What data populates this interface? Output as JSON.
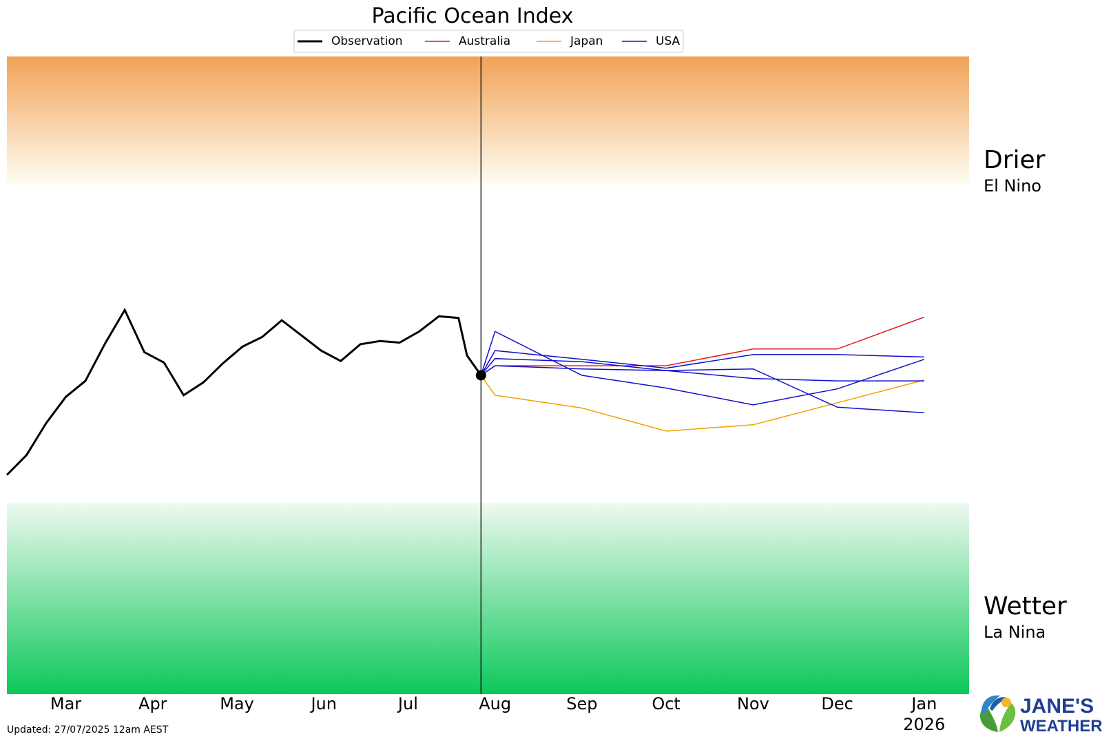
{
  "chart_data": {
    "type": "line",
    "title": "Pacific Ocean Index",
    "legend": {
      "placement": "top-center",
      "entries": [
        {
          "label": "Observation",
          "color": "#000000"
        },
        {
          "label": "Australia",
          "color": "#e41a1c"
        },
        {
          "label": "Japan",
          "color": "#f0a400"
        },
        {
          "label": "USA",
          "color": "#1010cc"
        }
      ]
    },
    "x_axis": {
      "tick_labels": [
        "Mar",
        "Apr",
        "May",
        "Jun",
        "Jul",
        "Aug",
        "Sep",
        "Oct",
        "Nov",
        "Dec",
        "Jan"
      ],
      "year_label": "2026",
      "range": [
        "2025-02-08",
        "2026-01-17"
      ]
    },
    "y_axis": {
      "range": [
        -4,
        4
      ],
      "tick_labels": []
    },
    "zones": {
      "upper": {
        "title": "Drier",
        "subtitle": "El Nino",
        "from": 2.4,
        "to": 4,
        "color": "#f1a257"
      },
      "lower": {
        "title": "Wetter",
        "subtitle": "La Nina",
        "from": -4,
        "to": -1.6,
        "color": "#0cc85a"
      }
    },
    "forecast_start": "2025-07-27",
    "series": [
      {
        "name": "Observation",
        "color": "#000000",
        "points": [
          [
            "2025-02-08",
            -1.25
          ],
          [
            "2025-02-15",
            -1.0
          ],
          [
            "2025-02-22",
            -0.6
          ],
          [
            "2025-03-01",
            -0.27
          ],
          [
            "2025-03-08",
            -0.07
          ],
          [
            "2025-03-15",
            0.4
          ],
          [
            "2025-03-22",
            0.82
          ],
          [
            "2025-03-29",
            0.29
          ],
          [
            "2025-04-05",
            0.16
          ],
          [
            "2025-04-12",
            -0.25
          ],
          [
            "2025-04-19",
            -0.09
          ],
          [
            "2025-04-26",
            0.15
          ],
          [
            "2025-05-03",
            0.36
          ],
          [
            "2025-05-10",
            0.48
          ],
          [
            "2025-05-17",
            0.69
          ],
          [
            "2025-05-24",
            0.5
          ],
          [
            "2025-05-31",
            0.31
          ],
          [
            "2025-06-07",
            0.18
          ],
          [
            "2025-06-14",
            0.39
          ],
          [
            "2025-06-21",
            0.43
          ],
          [
            "2025-06-28",
            0.41
          ],
          [
            "2025-07-05",
            0.55
          ],
          [
            "2025-07-12",
            0.74
          ],
          [
            "2025-07-19",
            0.72
          ],
          [
            "2025-07-22",
            0.25
          ],
          [
            "2025-07-27",
            0.0
          ]
        ]
      },
      {
        "name": "Australia",
        "color": "#e41a1c",
        "points": [
          [
            "2025-07-27",
            0.0
          ],
          [
            "2025-08-01",
            0.12
          ],
          [
            "2025-10-01",
            0.12
          ],
          [
            "2025-11-01",
            0.33
          ],
          [
            "2025-12-01",
            0.33
          ],
          [
            "2026-01-01",
            0.73
          ]
        ]
      },
      {
        "name": "Japan",
        "color": "#f0a400",
        "points": [
          [
            "2025-07-27",
            0.0
          ],
          [
            "2025-08-01",
            -0.25
          ],
          [
            "2025-09-01",
            -0.41
          ],
          [
            "2025-10-01",
            -0.7
          ],
          [
            "2025-11-01",
            -0.62
          ],
          [
            "2026-01-01",
            -0.06
          ]
        ]
      },
      {
        "name": "USA",
        "color": "#1010cc",
        "points": [
          [
            "2025-07-27",
            0.0
          ],
          [
            "2025-08-01",
            0.55
          ],
          [
            "2025-09-01",
            0.0
          ],
          [
            "2025-10-01",
            -0.16
          ],
          [
            "2025-11-01",
            -0.37
          ],
          [
            "2025-12-01",
            -0.17
          ],
          [
            "2026-01-01",
            0.2
          ]
        ]
      },
      {
        "name": "USA",
        "color": "#1010cc",
        "points": [
          [
            "2025-07-27",
            0.0
          ],
          [
            "2025-08-01",
            0.31
          ],
          [
            "2025-09-01",
            0.2
          ],
          [
            "2025-10-01",
            0.09
          ],
          [
            "2025-11-01",
            0.26
          ],
          [
            "2025-12-01",
            0.26
          ],
          [
            "2026-01-01",
            0.23
          ]
        ]
      },
      {
        "name": "USA",
        "color": "#1010cc",
        "points": [
          [
            "2025-07-27",
            0.0
          ],
          [
            "2025-08-01",
            0.21
          ],
          [
            "2025-09-01",
            0.17
          ],
          [
            "2025-10-01",
            0.06
          ],
          [
            "2025-11-01",
            -0.04
          ],
          [
            "2025-12-01",
            -0.07
          ],
          [
            "2026-01-01",
            -0.07
          ]
        ]
      },
      {
        "name": "USA",
        "color": "#1010cc",
        "points": [
          [
            "2025-07-27",
            0.0
          ],
          [
            "2025-08-01",
            0.12
          ],
          [
            "2025-09-01",
            0.08
          ],
          [
            "2025-10-01",
            0.06
          ],
          [
            "2025-11-01",
            0.08
          ],
          [
            "2025-12-01",
            -0.4
          ],
          [
            "2026-01-01",
            -0.47
          ]
        ]
      }
    ]
  },
  "footer": {
    "updated": "Updated: 27/07/2025 12am AEST"
  },
  "logo": {
    "line1": "JANE'S",
    "line2": "WEATHER"
  }
}
